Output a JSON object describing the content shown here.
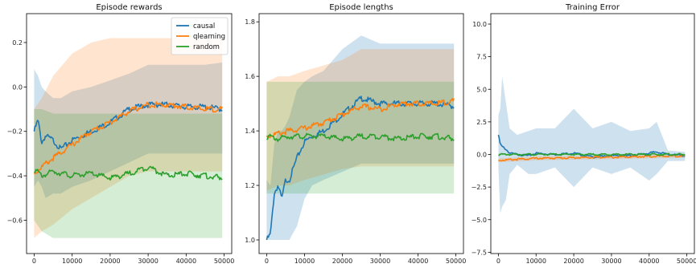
{
  "chart_data": [
    {
      "type": "line",
      "title": "Episode rewards",
      "xlim": [
        -2000,
        52000
      ],
      "ylim": [
        -0.75,
        0.33
      ],
      "xticks": [
        0,
        10000,
        20000,
        30000,
        40000,
        50000
      ],
      "yticks": [
        -0.6,
        -0.4,
        -0.2,
        0.0,
        0.2
      ],
      "ytick_labels": [
        "−0.6",
        "−0.4",
        "−0.2",
        "0.0",
        "0.2"
      ],
      "legend": {
        "position": "top-right"
      },
      "series": [
        {
          "name": "causal",
          "color": "#1f77b4",
          "band_opacity": 0.22,
          "x": [
            0,
            1000,
            2000,
            3000,
            5000,
            7000,
            10000,
            15000,
            20000,
            25000,
            30000,
            35000,
            40000,
            45000,
            49500
          ],
          "y": [
            -0.2,
            -0.15,
            -0.25,
            -0.22,
            -0.24,
            -0.28,
            -0.24,
            -0.2,
            -0.16,
            -0.1,
            -0.08,
            -0.08,
            -0.09,
            -0.09,
            -0.1
          ],
          "lower": [
            -0.45,
            -0.42,
            -0.45,
            -0.5,
            -0.48,
            -0.48,
            -0.45,
            -0.42,
            -0.38,
            -0.34,
            -0.3,
            -0.3,
            -0.3,
            -0.3,
            -0.3
          ],
          "upper": [
            0.08,
            0.05,
            0.0,
            -0.02,
            -0.05,
            -0.05,
            -0.02,
            0.0,
            0.03,
            0.06,
            0.1,
            0.1,
            0.1,
            0.1,
            0.11
          ]
        },
        {
          "name": "qlearning",
          "color": "#ff7f0e",
          "band_opacity": 0.2,
          "x": [
            0,
            2000,
            5000,
            10000,
            15000,
            20000,
            25000,
            30000,
            35000,
            40000,
            45000,
            49500
          ],
          "y": [
            -0.39,
            -0.36,
            -0.32,
            -0.26,
            -0.2,
            -0.16,
            -0.11,
            -0.08,
            -0.08,
            -0.09,
            -0.1,
            -0.1
          ],
          "lower": [
            -0.68,
            -0.65,
            -0.62,
            -0.55,
            -0.5,
            -0.45,
            -0.4,
            -0.38,
            -0.38,
            -0.38,
            -0.38,
            -0.38
          ],
          "upper": [
            -0.1,
            -0.05,
            0.05,
            0.15,
            0.2,
            0.22,
            0.22,
            0.22,
            0.22,
            0.22,
            0.22,
            0.22
          ]
        },
        {
          "name": "random",
          "color": "#2ca02c",
          "band_opacity": 0.2,
          "x": [
            0,
            2000,
            5000,
            10000,
            15000,
            20000,
            25000,
            30000,
            35000,
            40000,
            45000,
            49500
          ],
          "y": [
            -0.37,
            -0.4,
            -0.38,
            -0.4,
            -0.39,
            -0.41,
            -0.39,
            -0.36,
            -0.4,
            -0.39,
            -0.4,
            -0.41
          ],
          "lower": [
            -0.6,
            -0.65,
            -0.68,
            -0.68,
            -0.68,
            -0.68,
            -0.68,
            -0.68,
            -0.68,
            -0.68,
            -0.68,
            -0.68
          ],
          "upper": [
            -0.1,
            -0.1,
            -0.12,
            -0.12,
            -0.12,
            -0.12,
            -0.12,
            -0.12,
            -0.12,
            -0.12,
            -0.12,
            -0.12
          ]
        }
      ]
    },
    {
      "type": "line",
      "title": "Episode lengths",
      "xlim": [
        -2000,
        52000
      ],
      "ylim": [
        0.95,
        1.83
      ],
      "xticks": [
        0,
        10000,
        20000,
        30000,
        40000,
        50000
      ],
      "yticks": [
        1.0,
        1.2,
        1.4,
        1.6,
        1.8
      ],
      "ytick_labels": [
        "1.0",
        "1.2",
        "1.4",
        "1.6",
        "1.8"
      ],
      "series": [
        {
          "name": "causal",
          "color": "#1f77b4",
          "band_opacity": 0.22,
          "x": [
            0,
            1000,
            2000,
            3000,
            4000,
            5000,
            6000,
            8000,
            10000,
            12000,
            15000,
            20000,
            25000,
            30000,
            35000,
            40000,
            45000,
            49500
          ],
          "y": [
            1.0,
            1.02,
            1.17,
            1.2,
            1.15,
            1.22,
            1.22,
            1.3,
            1.36,
            1.38,
            1.4,
            1.46,
            1.52,
            1.5,
            1.5,
            1.5,
            1.5,
            1.49
          ],
          "lower": [
            1.0,
            1.0,
            1.0,
            1.0,
            1.0,
            1.0,
            1.0,
            1.05,
            1.15,
            1.2,
            1.22,
            1.25,
            1.28,
            1.28,
            1.28,
            1.28,
            1.28,
            1.28
          ],
          "upper": [
            1.22,
            1.2,
            1.35,
            1.4,
            1.4,
            1.42,
            1.45,
            1.55,
            1.58,
            1.6,
            1.62,
            1.7,
            1.75,
            1.72,
            1.72,
            1.72,
            1.72,
            1.72
          ]
        },
        {
          "name": "qlearning",
          "color": "#ff7f0e",
          "band_opacity": 0.2,
          "x": [
            0,
            3000,
            6000,
            10000,
            15000,
            20000,
            25000,
            30000,
            35000,
            40000,
            45000,
            49500
          ],
          "y": [
            1.38,
            1.39,
            1.4,
            1.41,
            1.43,
            1.46,
            1.49,
            1.48,
            1.5,
            1.5,
            1.5,
            1.51
          ],
          "lower": [
            1.18,
            1.2,
            1.2,
            1.22,
            1.24,
            1.26,
            1.27,
            1.27,
            1.27,
            1.27,
            1.27,
            1.27
          ],
          "upper": [
            1.58,
            1.6,
            1.6,
            1.62,
            1.64,
            1.66,
            1.7,
            1.7,
            1.7,
            1.7,
            1.7,
            1.7
          ]
        },
        {
          "name": "random",
          "color": "#2ca02c",
          "band_opacity": 0.2,
          "x": [
            0,
            3000,
            6000,
            10000,
            15000,
            20000,
            25000,
            30000,
            35000,
            40000,
            45000,
            49500
          ],
          "y": [
            1.38,
            1.37,
            1.38,
            1.38,
            1.38,
            1.37,
            1.38,
            1.38,
            1.37,
            1.38,
            1.38,
            1.37
          ],
          "lower": [
            1.17,
            1.17,
            1.17,
            1.17,
            1.17,
            1.17,
            1.17,
            1.17,
            1.17,
            1.17,
            1.17,
            1.17
          ],
          "upper": [
            1.58,
            1.58,
            1.58,
            1.58,
            1.58,
            1.58,
            1.58,
            1.58,
            1.58,
            1.58,
            1.58,
            1.58
          ]
        }
      ]
    },
    {
      "type": "line",
      "title": "Training Error",
      "xlim": [
        -2000,
        52000
      ],
      "ylim": [
        -7.6,
        10.8
      ],
      "xticks": [
        0,
        10000,
        20000,
        30000,
        40000,
        50000
      ],
      "yticks": [
        -7.5,
        -5.0,
        -2.5,
        0.0,
        2.5,
        5.0,
        7.5,
        10.0
      ],
      "ytick_labels": [
        "−7.5",
        "−5.0",
        "−2.5",
        "0.0",
        "2.5",
        "5.0",
        "7.5",
        "10.0"
      ],
      "series": [
        {
          "name": "causal",
          "color": "#1f77b4",
          "band_opacity": 0.22,
          "x": [
            0,
            500,
            1000,
            2000,
            3000,
            5000,
            8000,
            10000,
            15000,
            20000,
            25000,
            30000,
            35000,
            40000,
            42000,
            45000,
            49500
          ],
          "y": [
            1.5,
            0.8,
            0.6,
            0.4,
            0.1,
            0.0,
            -0.1,
            0.1,
            0.0,
            0.1,
            -0.2,
            -0.1,
            -0.1,
            0.1,
            0.2,
            0.0,
            -0.1
          ],
          "lower": [
            -1.0,
            -4.5,
            -4.0,
            -3.5,
            -1.5,
            -0.8,
            -1.5,
            -1.5,
            -1.0,
            -2.5,
            -1.0,
            -1.5,
            -1.0,
            -2.0,
            -1.5,
            -0.5,
            -0.5
          ],
          "upper": [
            3.0,
            3.5,
            6.0,
            4.0,
            2.0,
            1.5,
            1.8,
            2.0,
            2.0,
            3.5,
            2.0,
            2.5,
            1.8,
            2.0,
            2.5,
            0.3,
            0.2
          ]
        },
        {
          "name": "qlearning",
          "color": "#ff7f0e",
          "band_opacity": 0.2,
          "x": [
            0,
            10000,
            20000,
            30000,
            40000,
            49500
          ],
          "y": [
            -0.45,
            -0.3,
            -0.25,
            -0.2,
            -0.15,
            -0.1
          ],
          "lower": [
            -0.6,
            -0.45,
            -0.4,
            -0.35,
            -0.3,
            -0.25
          ],
          "upper": [
            -0.3,
            -0.15,
            -0.1,
            -0.05,
            0.0,
            0.05
          ]
        },
        {
          "name": "random",
          "color": "#2ca02c",
          "band_opacity": 0.2,
          "x": [
            0,
            10000,
            20000,
            30000,
            40000,
            49500
          ],
          "y": [
            0.0,
            0.0,
            0.0,
            0.0,
            0.0,
            0.0
          ],
          "lower": [
            -0.05,
            -0.05,
            -0.05,
            -0.05,
            -0.05,
            -0.05
          ],
          "upper": [
            0.05,
            0.05,
            0.05,
            0.05,
            0.05,
            0.05
          ]
        }
      ]
    }
  ]
}
